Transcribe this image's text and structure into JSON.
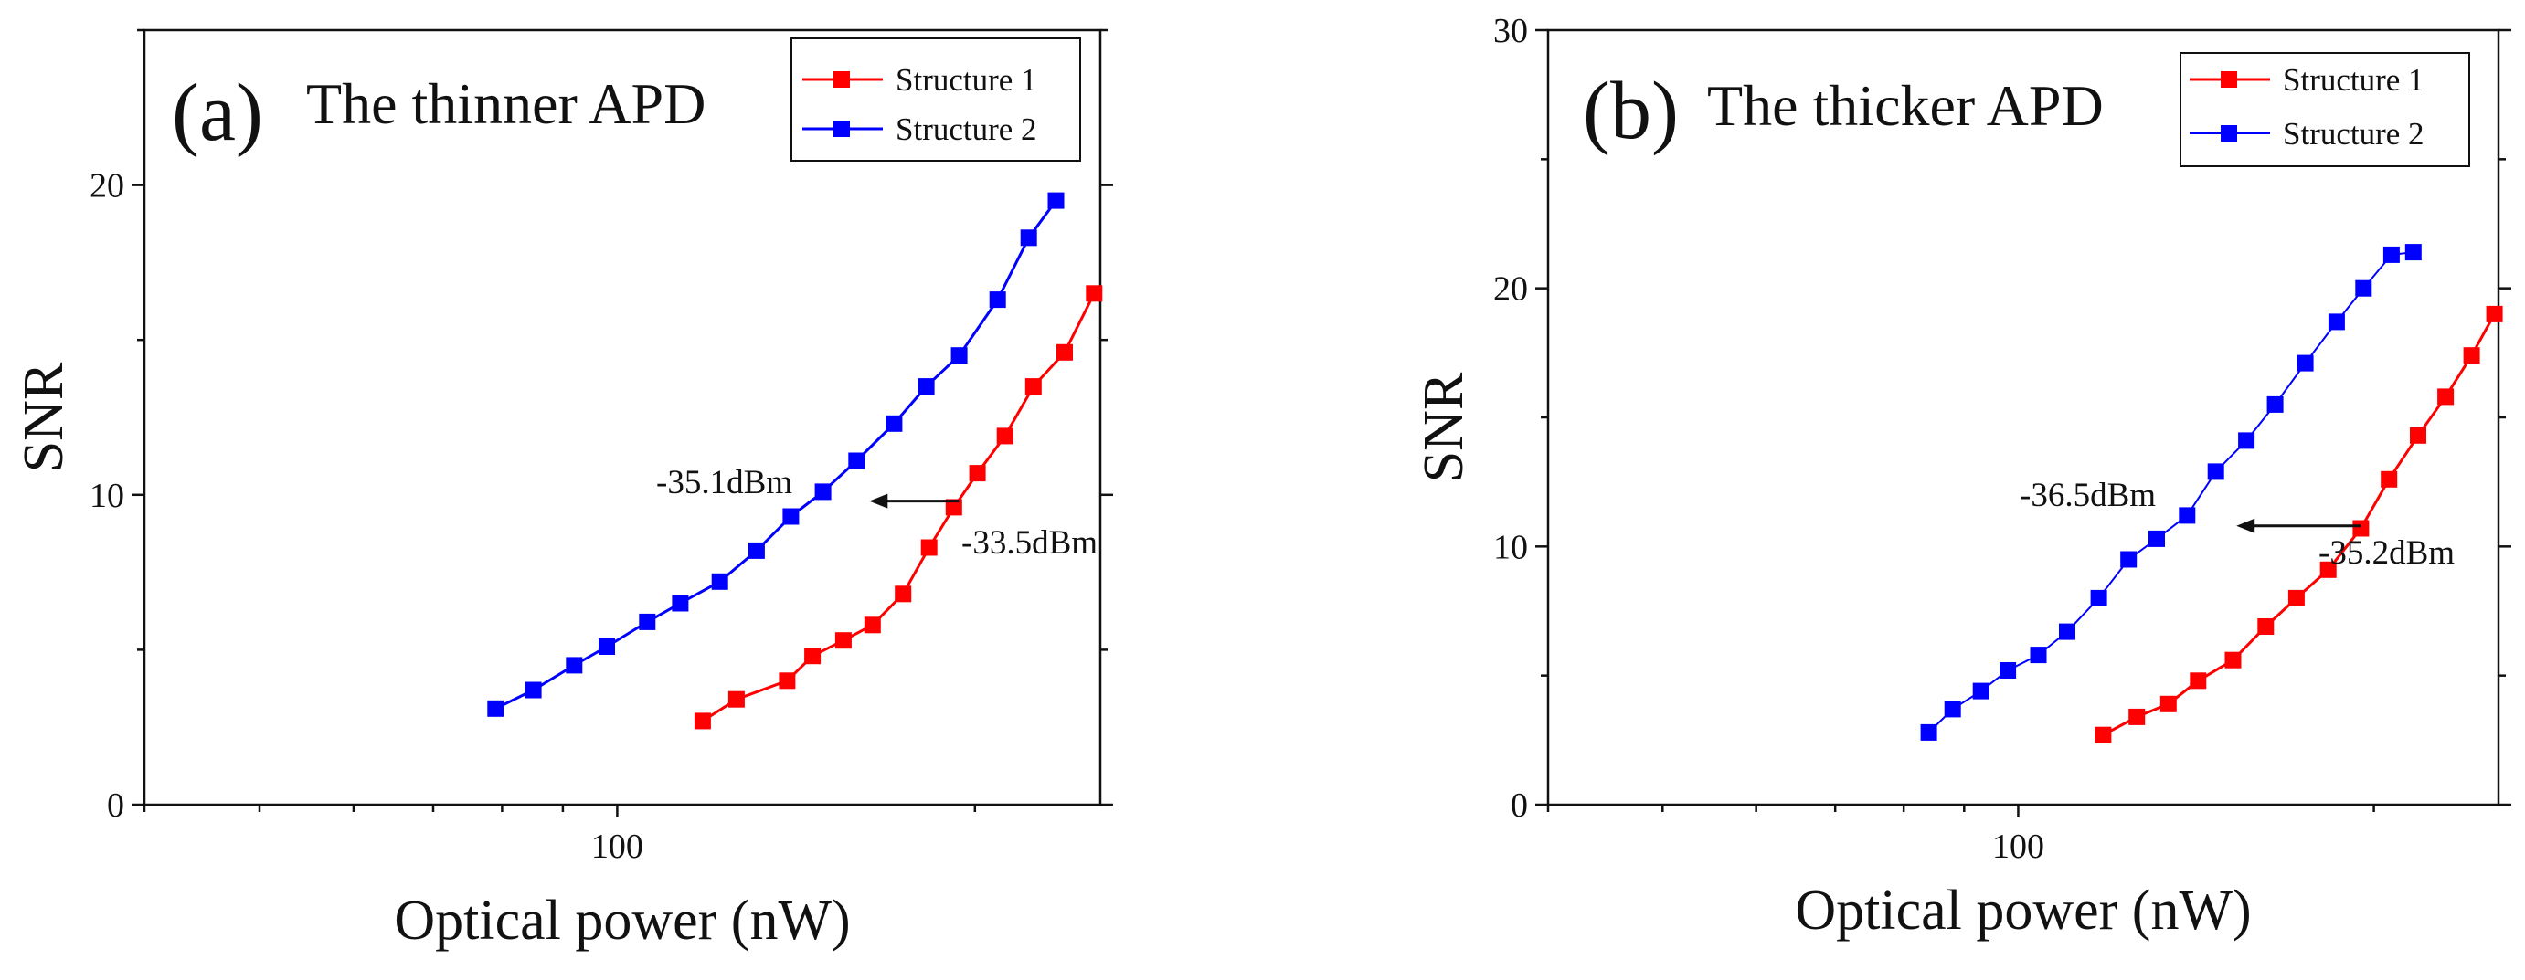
{
  "chart_data": [
    {
      "type": "line",
      "panel_label": "(a)",
      "title": "The thinner APD",
      "xlabel": "Optical power (nW)",
      "ylabel": "SNR",
      "xscale": "log",
      "xlim": [
        40,
        255
      ],
      "ylim": [
        0,
        25
      ],
      "x_ticks": [
        100
      ],
      "x_tick_labels": [
        "100"
      ],
      "y_ticks": [
        0,
        10,
        20
      ],
      "y_tick_labels": [
        "0",
        "10",
        "20"
      ],
      "legend_position": "top-right",
      "series": [
        {
          "name": "Structure 1",
          "color": "#ff0000",
          "marker": "square",
          "x": [
            118,
            126,
            139,
            146,
            155,
            164,
            174,
            183,
            192,
            201,
            212,
            224,
            238,
            252
          ],
          "y": [
            2.7,
            3.4,
            4.0,
            4.8,
            5.3,
            5.8,
            6.8,
            8.3,
            9.6,
            10.7,
            11.9,
            13.5,
            14.6,
            16.5
          ]
        },
        {
          "name": "Structure 2",
          "color": "#0000ff",
          "marker": "square",
          "x": [
            79,
            85,
            92,
            98,
            106,
            113,
            122,
            131,
            140,
            149,
            159,
            171,
            182,
            194,
            209,
            222,
            234
          ],
          "y": [
            3.1,
            3.7,
            4.5,
            5.1,
            5.9,
            6.5,
            7.2,
            8.2,
            9.3,
            10.1,
            11.1,
            12.3,
            13.5,
            14.5,
            16.3,
            18.3,
            19.5
          ]
        }
      ],
      "annotations": [
        {
          "text": "-35.1dBm",
          "x": 162,
          "y": 10.4
        },
        {
          "text": "-33.5dBm",
          "x": 233,
          "y": 8.5
        }
      ],
      "arrow": {
        "from": [
          194,
          9.8
        ],
        "to": [
          163,
          9.8
        ]
      }
    },
    {
      "type": "line",
      "panel_label": "(b)",
      "title": "The thicker APD",
      "xlabel": "Optical power (nW)",
      "ylabel": "SNR",
      "xscale": "log",
      "xlim": [
        40,
        255
      ],
      "ylim": [
        0,
        30
      ],
      "x_ticks": [
        100
      ],
      "x_tick_labels": [
        "100"
      ],
      "y_ticks": [
        0,
        10,
        20,
        30
      ],
      "y_tick_labels": [
        "0",
        "10",
        "20",
        "30"
      ],
      "legend_position": "top-right",
      "series": [
        {
          "name": "Structure 1",
          "color": "#ff0000",
          "marker": "square",
          "x": [
            118,
            126,
            134,
            142,
            152,
            162,
            172,
            183,
            195,
            206,
            218,
            230,
            242,
            253
          ],
          "y": [
            2.7,
            3.4,
            3.9,
            4.8,
            5.6,
            6.9,
            8.0,
            9.1,
            10.7,
            12.6,
            14.3,
            15.8,
            17.4,
            19.0
          ]
        },
        {
          "name": "Structure 2",
          "color": "#0000ff",
          "marker": "square",
          "x": [
            84,
            88,
            93,
            98,
            104,
            110,
            117,
            124,
            131,
            139,
            147,
            156,
            165,
            175,
            186,
            196,
            207,
            216
          ],
          "y": [
            2.8,
            3.7,
            4.4,
            5.2,
            5.8,
            6.7,
            8.0,
            9.5,
            10.3,
            11.2,
            12.9,
            14.1,
            15.5,
            17.1,
            18.7,
            20.0,
            21.3,
            21.4
          ]
        }
      ],
      "annotations": [
        {
          "text": "-36.5dBm",
          "x": 140,
          "y": 12.0
        },
        {
          "text": "-35.2dBm",
          "x": 200,
          "y": 9.4
        }
      ],
      "arrow": {
        "from": [
          195,
          10.8
        ],
        "to": [
          153,
          10.8
        ]
      }
    }
  ]
}
